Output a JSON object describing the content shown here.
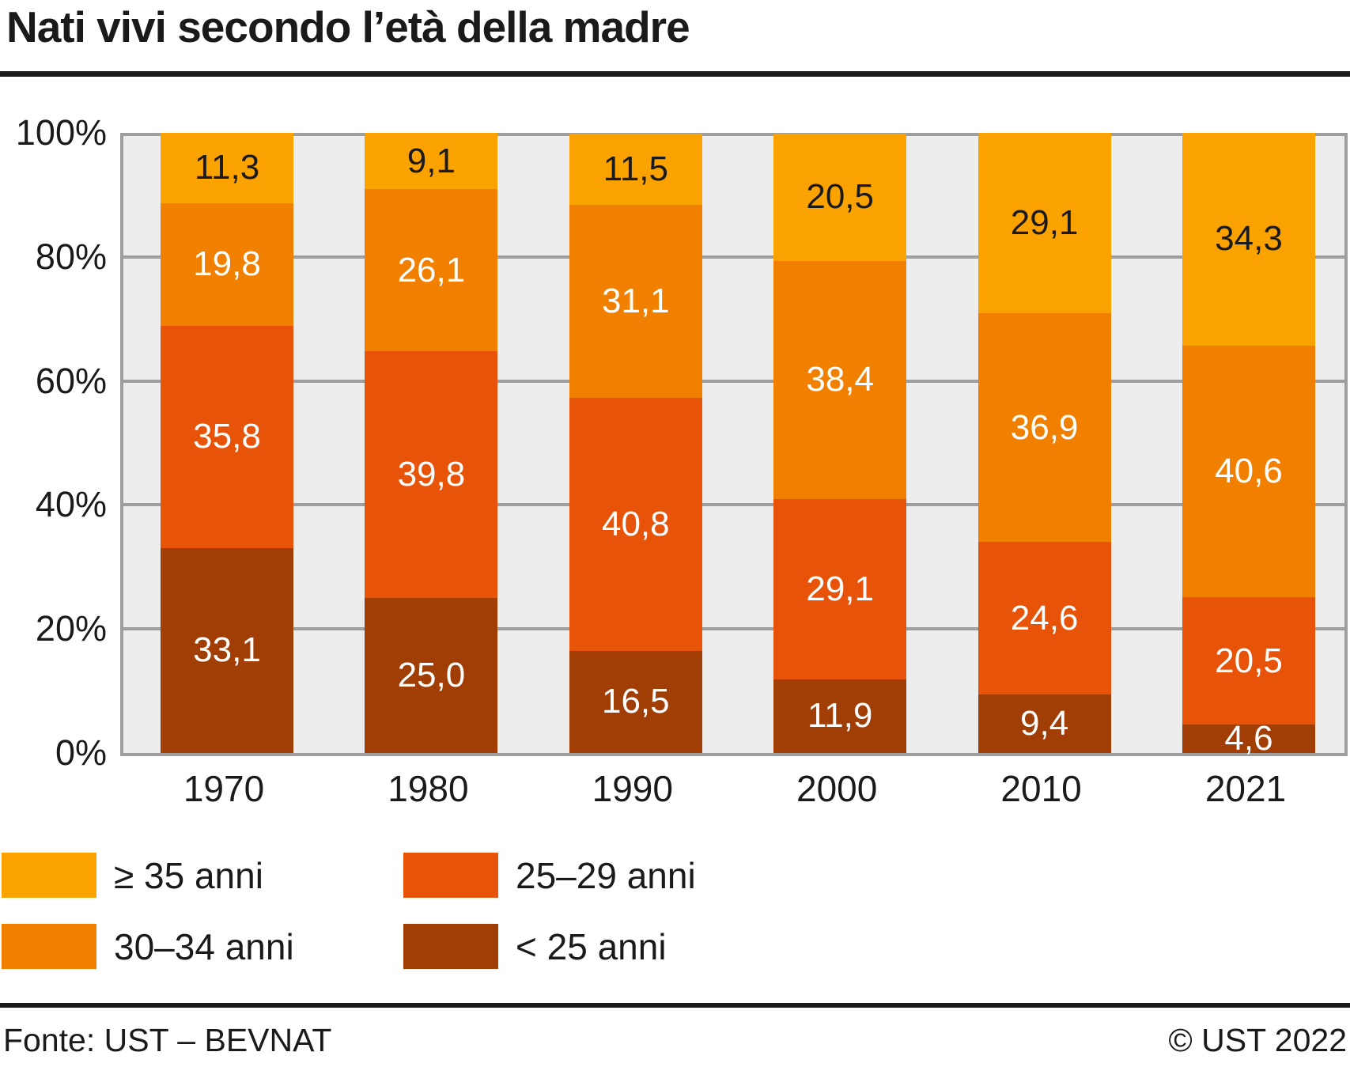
{
  "title": "Nati vivi secondo l’età della madre",
  "chart_data": {
    "type": "bar",
    "stacked": true,
    "unit": "percent",
    "title": "Nati vivi secondo l’età della madre",
    "categories": [
      "1970",
      "1980",
      "1990",
      "2000",
      "2010",
      "2021"
    ],
    "series": [
      {
        "name": "≥ 35 anni",
        "color": "#faa300",
        "label_color": "#1a1a1a",
        "values": [
          11.3,
          9.1,
          11.5,
          20.5,
          29.1,
          34.3
        ],
        "display": [
          "11,3",
          "9,1",
          "11,5",
          "20,5",
          "29,1",
          "34,3"
        ]
      },
      {
        "name": "30–34 anni",
        "color": "#f28000",
        "label_color": "#ffffff",
        "values": [
          19.8,
          26.1,
          31.1,
          38.4,
          36.9,
          40.6
        ],
        "display": [
          "19,8",
          "26,1",
          "31,1",
          "38,4",
          "36,9",
          "40,6"
        ]
      },
      {
        "name": "25–29 anni",
        "color": "#e8530a",
        "label_color": "#ffffff",
        "values": [
          35.8,
          39.8,
          40.8,
          29.1,
          24.6,
          20.5
        ],
        "display": [
          "35,8",
          "39,8",
          "40,8",
          "29,1",
          "24,6",
          "20,5"
        ]
      },
      {
        "name": "< 25 anni",
        "color": "#a03e06",
        "label_color": "#ffffff",
        "values": [
          33.1,
          25.0,
          16.5,
          11.9,
          9.4,
          4.6
        ],
        "display": [
          "33,1",
          "25,0",
          "16,5",
          "11,9",
          "9,4",
          "4,6"
        ]
      }
    ],
    "y_ticks": [
      "100%",
      "80%",
      "60%",
      "40%",
      "20%",
      "0%"
    ],
    "ylim": [
      0,
      100
    ],
    "grid": true,
    "plot_background": "#ededed",
    "grid_color": "#9e9e9e",
    "legend_position": "bottom-left"
  },
  "legend": {
    "order_note": "column 1: series 0 and 1; column 2: series 2 and 3"
  },
  "footer": {
    "source": "Fonte: UST – BEVNAT",
    "copyright": "© UST 2022"
  }
}
